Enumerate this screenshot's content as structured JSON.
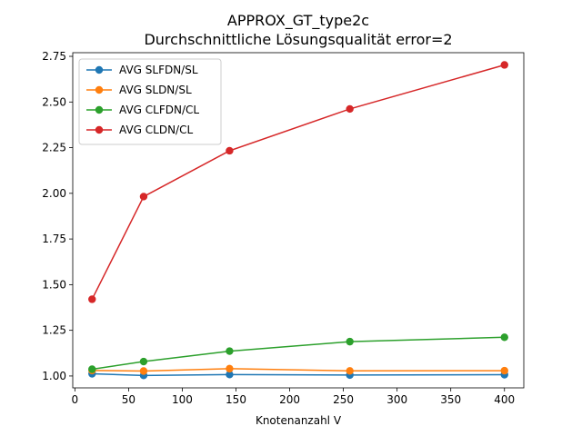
{
  "chart_data": {
    "type": "line",
    "title": "APPROX_GT_type2c",
    "subtitle": "Durchschnittliche Lösungsqualität error=2",
    "xlabel": "Knotenanzahl V",
    "ylabel": "",
    "xlim": [
      -2,
      418
    ],
    "ylim": [
      0.935,
      2.77
    ],
    "xticks": [
      0,
      50,
      100,
      150,
      200,
      250,
      300,
      350,
      400
    ],
    "xtick_labels": [
      "0",
      "50",
      "100",
      "150",
      "200",
      "250",
      "300",
      "350",
      "400"
    ],
    "yticks": [
      1.0,
      1.25,
      1.5,
      1.75,
      2.0,
      2.25,
      2.5,
      2.75
    ],
    "ytick_labels": [
      "1.00",
      "1.25",
      "1.50",
      "1.75",
      "2.00",
      "2.25",
      "2.50",
      "2.75"
    ],
    "grid": false,
    "legend_position": "top-left",
    "x": [
      16,
      64,
      144,
      256,
      400
    ],
    "series": [
      {
        "name": "AVG SLFDN/SL",
        "color": "#1f77b4",
        "values": [
          1.012,
          1.003,
          1.008,
          1.005,
          1.007
        ]
      },
      {
        "name": "AVG SLDN/SL",
        "color": "#ff7f0e",
        "values": [
          1.03,
          1.027,
          1.04,
          1.028,
          1.029
        ]
      },
      {
        "name": "AVG CLFDN/CL",
        "color": "#2ca02c",
        "values": [
          1.037,
          1.079,
          1.136,
          1.188,
          1.212
        ]
      },
      {
        "name": "AVG CLDN/CL",
        "color": "#d62728",
        "values": [
          1.42,
          1.982,
          2.233,
          2.462,
          2.703
        ]
      }
    ]
  }
}
